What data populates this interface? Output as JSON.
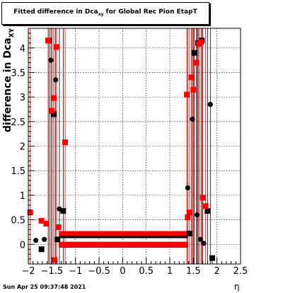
{
  "chart_data": {
    "type": "scatter",
    "title_main": "Fitted difference in Dca",
    "title_sub": "xy",
    "title_rest": " for Global Rec Pion EtapT",
    "ylabel_main": "difference in Dca",
    "ylabel_sub": "XY",
    "xlabel": "η",
    "xlim": [
      -2.0,
      2.5
    ],
    "ylim": [
      -0.4,
      4.4
    ],
    "x_ticks": [
      -2,
      -1.5,
      -1,
      -0.5,
      0,
      0.5,
      1,
      1.5,
      2,
      2.5
    ],
    "x_tick_labels": [
      "−2",
      "−1.5",
      "−1",
      "−0.5",
      "0",
      "0.5",
      "1",
      "1.5",
      "2",
      "2.5"
    ],
    "y_ticks": [
      0,
      0.5,
      1,
      1.5,
      2,
      2.5,
      3,
      3.5,
      4
    ],
    "y_tick_labels": [
      "0",
      "0.5",
      "1",
      "1.5",
      "2",
      "2.5",
      "3",
      "3.5",
      "4"
    ],
    "grid": true,
    "series": [
      {
        "color": "#000000",
        "points": [
          {
            "x": -1.84,
            "y": 0.08
          },
          {
            "x": -1.72,
            "y": -0.1
          },
          {
            "x": -1.66,
            "y": 0.1
          },
          {
            "x": -1.56,
            "y": 4.15
          },
          {
            "x": -1.52,
            "y": 3.75
          },
          {
            "x": -1.46,
            "y": 2.65
          },
          {
            "x": -1.42,
            "y": 3.35
          },
          {
            "x": -1.38,
            "y": 0.1
          },
          {
            "x": -1.34,
            "y": 0.72
          },
          {
            "x": -1.26,
            "y": 0.68
          },
          {
            "x": 1.38,
            "y": 1.15
          },
          {
            "x": 1.42,
            "y": 0.22
          },
          {
            "x": 1.48,
            "y": 2.55
          },
          {
            "x": 1.52,
            "y": 3.9
          },
          {
            "x": 1.58,
            "y": 0.6
          },
          {
            "x": 1.6,
            "y": 4.1
          },
          {
            "x": 1.65,
            "y": 0.1
          },
          {
            "x": 1.68,
            "y": 4.15
          },
          {
            "x": 1.72,
            "y": 0.02
          },
          {
            "x": 1.8,
            "y": 0.68
          },
          {
            "x": 1.86,
            "y": 2.85
          },
          {
            "x": 1.9,
            "y": -0.28
          }
        ]
      },
      {
        "color": "#ff0000",
        "points": [
          {
            "x": -1.96,
            "y": 0.65
          },
          {
            "x": -1.72,
            "y": 0.48
          },
          {
            "x": -1.62,
            "y": 0.42
          },
          {
            "x": -1.58,
            "y": 4.15
          },
          {
            "x": -1.5,
            "y": 2.72
          },
          {
            "x": -1.46,
            "y": 2.98
          },
          {
            "x": -1.44,
            "y": -0.32
          },
          {
            "x": -1.4,
            "y": 4.02
          },
          {
            "x": -1.36,
            "y": 0.35
          },
          {
            "x": -1.22,
            "y": 2.08
          },
          {
            "x": 1.36,
            "y": 3.05
          },
          {
            "x": 1.38,
            "y": 0.55
          },
          {
            "x": 1.42,
            "y": 0.65
          },
          {
            "x": 1.46,
            "y": 3.4
          },
          {
            "x": 1.5,
            "y": 3.15
          },
          {
            "x": 1.56,
            "y": 3.7
          },
          {
            "x": 1.62,
            "y": 4.08
          },
          {
            "x": 1.66,
            "y": 4.12
          },
          {
            "x": 1.7,
            "y": 0.95
          },
          {
            "x": 1.76,
            "y": 0.78
          }
        ]
      }
    ]
  },
  "footer": {
    "timestamp": "Sun Apr 25 09:37:48 2021"
  }
}
